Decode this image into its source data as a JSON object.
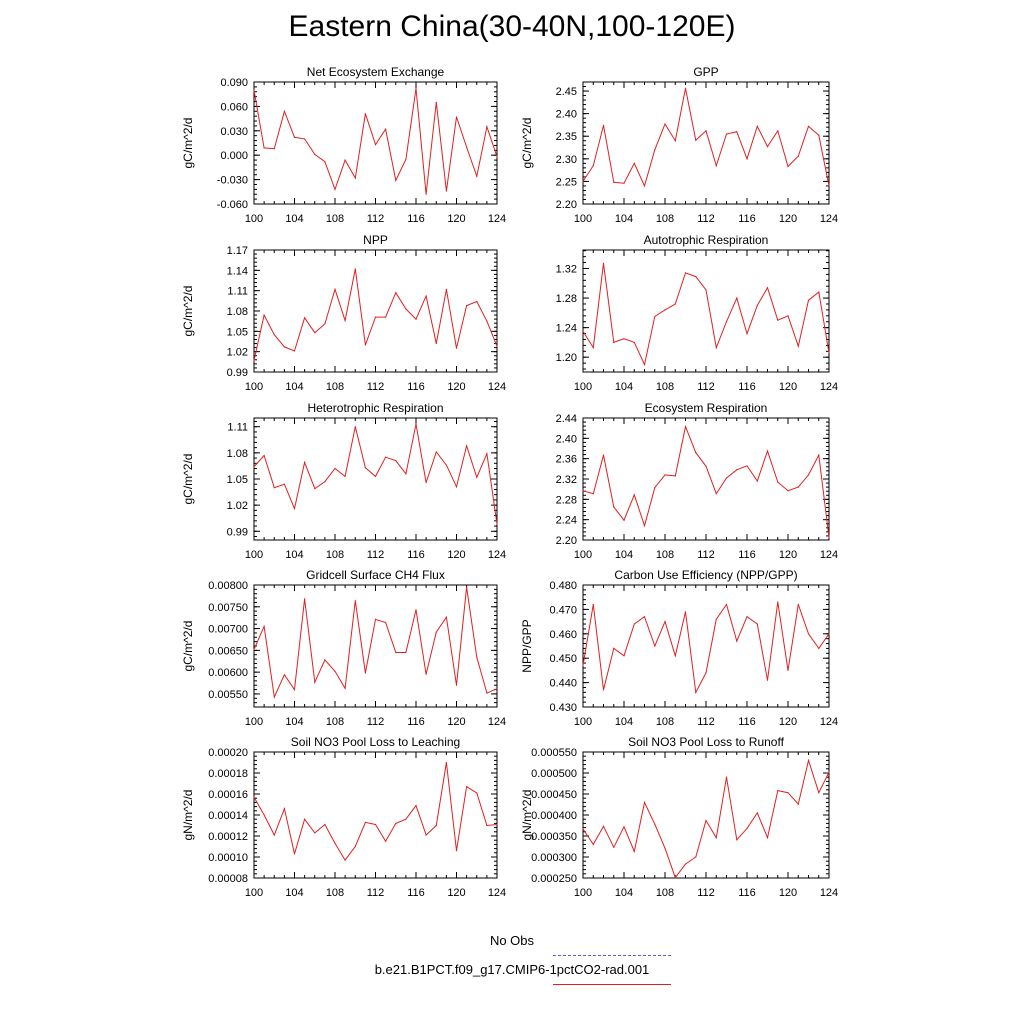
{
  "title": "Eastern China(30-40N,100-120E)",
  "legend": [
    {
      "label": "No Obs",
      "color": "#5b5bd6",
      "style": "dashed"
    },
    {
      "label": "b.e21.B1PCT.f09_g17.CMIP6-1pctCO2-rad.001",
      "color": "#e02020",
      "style": "solid"
    }
  ],
  "chart_data": [
    {
      "type": "line",
      "title": "Net Ecosystem Exchange",
      "ylabel": "gC/m^2/d",
      "xlim": [
        100,
        124
      ],
      "xticks": [
        "100",
        "104",
        "108",
        "112",
        "116",
        "120",
        "124"
      ],
      "yticks": [
        "-0.060",
        "-0.030",
        "0.000",
        "0.030",
        "0.060",
        "0.090"
      ],
      "ylim": [
        -0.06,
        0.09
      ],
      "x": [
        100,
        101,
        102,
        103,
        104,
        105,
        106,
        107,
        108,
        109,
        110,
        111,
        112,
        113,
        114,
        115,
        116,
        117,
        118,
        119,
        120,
        121,
        122,
        123,
        124
      ],
      "series": [
        {
          "name": "b.e21.B1PCT.f09_g17.CMIP6-1pctCO2-rad.001",
          "color": "#e02020",
          "values": [
            0.08,
            0.009,
            0.008,
            0.054,
            0.022,
            0.02,
            0.001,
            -0.008,
            -0.042,
            -0.006,
            -0.028,
            0.051,
            0.013,
            0.032,
            -0.031,
            -0.005,
            0.082,
            -0.048,
            0.065,
            -0.044,
            0.047,
            0.01,
            -0.026,
            0.035,
            -0.002
          ]
        }
      ]
    },
    {
      "type": "line",
      "title": "GPP",
      "ylabel": "gC/m^2/d",
      "xlim": [
        100,
        124
      ],
      "xticks": [
        "100",
        "104",
        "108",
        "112",
        "116",
        "120",
        "124"
      ],
      "yticks": [
        "2.20",
        "2.25",
        "2.30",
        "2.35",
        "2.40",
        "2.45"
      ],
      "ylim": [
        2.2,
        2.47
      ],
      "x": [
        100,
        101,
        102,
        103,
        104,
        105,
        106,
        107,
        108,
        109,
        110,
        111,
        112,
        113,
        114,
        115,
        116,
        117,
        118,
        119,
        120,
        121,
        122,
        123,
        124
      ],
      "series": [
        {
          "name": "b.e21.B1PCT.f09_g17.CMIP6-1pctCO2-rad.001",
          "color": "#e02020",
          "values": [
            2.25,
            2.285,
            2.374,
            2.248,
            2.246,
            2.29,
            2.24,
            2.32,
            2.377,
            2.34,
            2.456,
            2.341,
            2.362,
            2.285,
            2.355,
            2.36,
            2.3,
            2.372,
            2.327,
            2.362,
            2.283,
            2.306,
            2.372,
            2.352,
            2.24
          ]
        }
      ]
    },
    {
      "type": "line",
      "title": "NPP",
      "ylabel": "gC/m^2/d",
      "xlim": [
        100,
        124
      ],
      "xticks": [
        "100",
        "104",
        "108",
        "112",
        "116",
        "120",
        "124"
      ],
      "yticks": [
        "0.99",
        "1.02",
        "1.05",
        "1.08",
        "1.11",
        "1.14",
        "1.17"
      ],
      "ylim": [
        0.99,
        1.17
      ],
      "x": [
        100,
        101,
        102,
        103,
        104,
        105,
        106,
        107,
        108,
        109,
        110,
        111,
        112,
        113,
        114,
        115,
        116,
        117,
        118,
        119,
        120,
        121,
        122,
        123,
        124
      ],
      "series": [
        {
          "name": "b.e21.B1PCT.f09_g17.CMIP6-1pctCO2-rad.001",
          "color": "#e02020",
          "values": [
            1.007,
            1.074,
            1.045,
            1.027,
            1.021,
            1.07,
            1.048,
            1.061,
            1.112,
            1.066,
            1.142,
            1.03,
            1.071,
            1.071,
            1.107,
            1.083,
            1.068,
            1.102,
            1.032,
            1.112,
            1.025,
            1.088,
            1.094,
            1.065,
            1.028
          ]
        }
      ]
    },
    {
      "type": "line",
      "title": "Autotrophic Respiration",
      "ylabel": "",
      "xlim": [
        100,
        124
      ],
      "xticks": [
        "100",
        "104",
        "108",
        "112",
        "116",
        "120",
        "124"
      ],
      "yticks": [
        "1.20",
        "1.24",
        "1.28",
        "1.32"
      ],
      "ylim": [
        1.18,
        1.345
      ],
      "x": [
        100,
        101,
        102,
        103,
        104,
        105,
        106,
        107,
        108,
        109,
        110,
        111,
        112,
        113,
        114,
        115,
        116,
        117,
        118,
        119,
        120,
        121,
        122,
        123,
        124
      ],
      "series": [
        {
          "name": "b.e21.B1PCT.f09_g17.CMIP6-1pctCO2-rad.001",
          "color": "#e02020",
          "values": [
            1.235,
            1.213,
            1.327,
            1.22,
            1.225,
            1.22,
            1.19,
            1.255,
            1.264,
            1.272,
            1.314,
            1.309,
            1.291,
            1.213,
            1.248,
            1.28,
            1.232,
            1.27,
            1.294,
            1.25,
            1.256,
            1.215,
            1.277,
            1.288,
            1.206
          ]
        }
      ]
    },
    {
      "type": "line",
      "title": "Heterotrophic Respiration",
      "ylabel": "gC/m^2/d",
      "xlim": [
        100,
        124
      ],
      "xticks": [
        "100",
        "104",
        "108",
        "112",
        "116",
        "120",
        "124"
      ],
      "yticks": [
        "0.99",
        "1.02",
        "1.05",
        "1.08",
        "1.11"
      ],
      "ylim": [
        0.98,
        1.12
      ],
      "x": [
        100,
        101,
        102,
        103,
        104,
        105,
        106,
        107,
        108,
        109,
        110,
        111,
        112,
        113,
        114,
        115,
        116,
        117,
        118,
        119,
        120,
        121,
        122,
        123,
        124
      ],
      "series": [
        {
          "name": "b.e21.B1PCT.f09_g17.CMIP6-1pctCO2-rad.001",
          "color": "#e02020",
          "values": [
            1.064,
            1.077,
            1.04,
            1.044,
            1.016,
            1.069,
            1.039,
            1.047,
            1.062,
            1.053,
            1.11,
            1.063,
            1.053,
            1.075,
            1.071,
            1.056,
            1.113,
            1.046,
            1.081,
            1.066,
            1.041,
            1.088,
            1.052,
            1.079,
            0.998
          ]
        }
      ]
    },
    {
      "type": "line",
      "title": "Ecosystem Respiration",
      "ylabel": "",
      "xlim": [
        100,
        124
      ],
      "xticks": [
        "100",
        "104",
        "108",
        "112",
        "116",
        "120",
        "124"
      ],
      "yticks": [
        "2.20",
        "2.24",
        "2.28",
        "2.32",
        "2.36",
        "2.40",
        "2.44"
      ],
      "ylim": [
        2.2,
        2.44
      ],
      "x": [
        100,
        101,
        102,
        103,
        104,
        105,
        106,
        107,
        108,
        109,
        110,
        111,
        112,
        113,
        114,
        115,
        116,
        117,
        118,
        119,
        120,
        121,
        122,
        123,
        124
      ],
      "series": [
        {
          "name": "b.e21.B1PCT.f09_g17.CMIP6-1pctCO2-rad.001",
          "color": "#e02020",
          "values": [
            2.297,
            2.291,
            2.367,
            2.265,
            2.239,
            2.289,
            2.228,
            2.303,
            2.328,
            2.326,
            2.423,
            2.372,
            2.345,
            2.291,
            2.322,
            2.338,
            2.346,
            2.316,
            2.375,
            2.314,
            2.297,
            2.304,
            2.328,
            2.367,
            2.205
          ]
        }
      ]
    },
    {
      "type": "line",
      "title": "Gridcell Surface CH4 Flux",
      "ylabel": "gC/m^2/d",
      "xlim": [
        100,
        124
      ],
      "xticks": [
        "100",
        "104",
        "108",
        "112",
        "116",
        "120",
        "124"
      ],
      "yticks": [
        "0.00550",
        "0.00600",
        "0.00650",
        "0.00700",
        "0.00750",
        "0.00800"
      ],
      "ylim": [
        0.0052,
        0.008
      ],
      "x": [
        100,
        101,
        102,
        103,
        104,
        105,
        106,
        107,
        108,
        109,
        110,
        111,
        112,
        113,
        114,
        115,
        116,
        117,
        118,
        119,
        120,
        121,
        122,
        123,
        124
      ],
      "series": [
        {
          "name": "b.e21.B1PCT.f09_g17.CMIP6-1pctCO2-rad.001",
          "color": "#e02020",
          "values": [
            0.00652,
            0.00705,
            0.00543,
            0.00594,
            0.0056,
            0.00768,
            0.00577,
            0.00628,
            0.00602,
            0.00563,
            0.00764,
            0.00598,
            0.00721,
            0.00714,
            0.00645,
            0.00645,
            0.00743,
            0.00595,
            0.00692,
            0.00726,
            0.0057,
            0.00795,
            0.00634,
            0.00552,
            0.00562
          ]
        }
      ]
    },
    {
      "type": "line",
      "title": "Carbon Use Efficiency (NPP/GPP)",
      "ylabel": "NPP/GPP",
      "xlim": [
        100,
        124
      ],
      "xticks": [
        "100",
        "104",
        "108",
        "112",
        "116",
        "120",
        "124"
      ],
      "yticks": [
        "0.430",
        "0.440",
        "0.450",
        "0.460",
        "0.470",
        "0.480"
      ],
      "ylim": [
        0.43,
        0.48
      ],
      "x": [
        100,
        101,
        102,
        103,
        104,
        105,
        106,
        107,
        108,
        109,
        110,
        111,
        112,
        113,
        114,
        115,
        116,
        117,
        118,
        119,
        120,
        121,
        122,
        123,
        124
      ],
      "series": [
        {
          "name": "b.e21.B1PCT.f09_g17.CMIP6-1pctCO2-rad.001",
          "color": "#e02020",
          "values": [
            0.447,
            0.472,
            0.437,
            0.454,
            0.451,
            0.464,
            0.467,
            0.455,
            0.465,
            0.451,
            0.469,
            0.436,
            0.444,
            0.466,
            0.472,
            0.457,
            0.467,
            0.464,
            0.441,
            0.473,
            0.445,
            0.472,
            0.46,
            0.454,
            0.46
          ]
        }
      ]
    },
    {
      "type": "line",
      "title": "Soil NO3 Pool Loss to Leaching",
      "ylabel": "gN/m^2/d",
      "xlim": [
        100,
        124
      ],
      "xticks": [
        "100",
        "104",
        "108",
        "112",
        "116",
        "120",
        "124"
      ],
      "yticks": [
        "0.00008",
        "0.00010",
        "0.00012",
        "0.00014",
        "0.00016",
        "0.00018",
        "0.00020"
      ],
      "ylim": [
        8e-05,
        0.0002
      ],
      "x": [
        100,
        101,
        102,
        103,
        104,
        105,
        106,
        107,
        108,
        109,
        110,
        111,
        112,
        113,
        114,
        115,
        116,
        117,
        118,
        119,
        120,
        121,
        122,
        123,
        124
      ],
      "series": [
        {
          "name": "b.e21.B1PCT.f09_g17.CMIP6-1pctCO2-rad.001",
          "color": "#e02020",
          "values": [
            0.000157,
            0.00014,
            0.000121,
            0.000146,
            0.000103,
            0.000136,
            0.000123,
            0.000131,
            0.000113,
            9.7e-05,
            0.00011,
            0.000133,
            0.000131,
            0.000115,
            0.000132,
            0.000136,
            0.000149,
            0.000121,
            0.00013,
            0.00019,
            0.000106,
            0.000167,
            0.000161,
            0.00013,
            0.000131
          ]
        }
      ]
    },
    {
      "type": "line",
      "title": "Soil NO3 Pool Loss to Runoff",
      "ylabel": "gN/m^2/d",
      "xlim": [
        100,
        124
      ],
      "xticks": [
        "100",
        "104",
        "108",
        "112",
        "116",
        "120",
        "124"
      ],
      "yticks": [
        "0.000250",
        "0.000300",
        "0.000350",
        "0.000400",
        "0.000450",
        "0.000500",
        "0.000550"
      ],
      "ylim": [
        0.00025,
        0.00055
      ],
      "x": [
        100,
        101,
        102,
        103,
        104,
        105,
        106,
        107,
        108,
        109,
        110,
        111,
        112,
        113,
        114,
        115,
        116,
        117,
        118,
        119,
        120,
        121,
        122,
        123,
        124
      ],
      "series": [
        {
          "name": "b.e21.B1PCT.f09_g17.CMIP6-1pctCO2-rad.001",
          "color": "#e02020",
          "values": [
            0.000367,
            0.00033,
            0.000373,
            0.000323,
            0.000372,
            0.000313,
            0.00043,
            0.000378,
            0.000321,
            0.000251,
            0.000283,
            0.0003,
            0.000387,
            0.000346,
            0.00049,
            0.000341,
            0.000368,
            0.000405,
            0.000346,
            0.000458,
            0.000453,
            0.000426,
            0.00053,
            0.000453,
            0.000502
          ]
        }
      ]
    }
  ]
}
